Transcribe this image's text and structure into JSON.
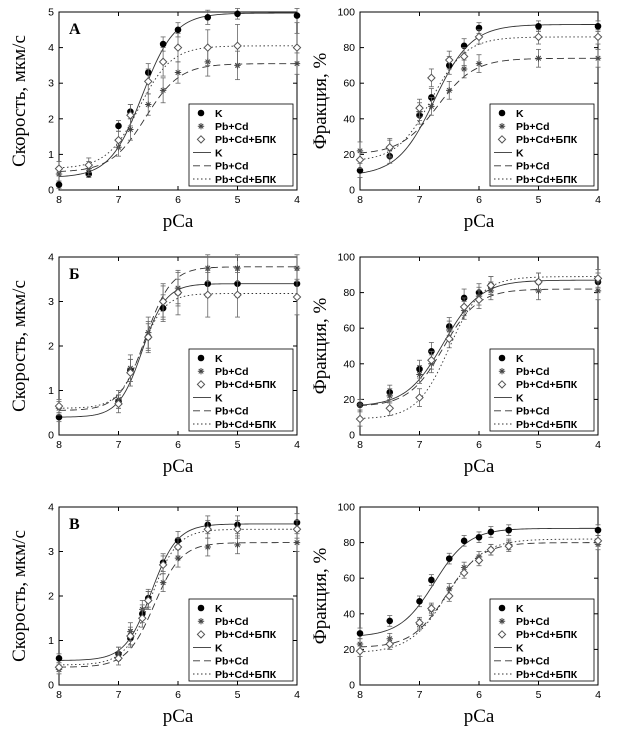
{
  "figure": {
    "row_labels": [
      "А",
      "Б",
      "В"
    ],
    "x_axis_title": "pCa",
    "left_y_title": "Скорость, мкм/с",
    "right_y_title": "Фракция, %"
  },
  "chart_data": [
    {
      "type": "scatter",
      "panel": "А-left",
      "panel_label": "А",
      "xlabel": "pCa",
      "ylabel": "Скорость, мкм/с",
      "xlim": [
        8,
        4
      ],
      "xticks": [
        8,
        7,
        6,
        5,
        4
      ],
      "ylim": [
        0,
        5
      ],
      "yticks": [
        0,
        1,
        2,
        3,
        4,
        5
      ],
      "legend_position": "bottom-right",
      "legend": [
        "K",
        "Pb+Cd",
        "Pb+Cd+БПК",
        "K",
        "Pb+Cd",
        "Pb+Cd+БПК"
      ],
      "x": [
        8,
        7.5,
        7,
        6.8,
        6.5,
        6.25,
        6,
        5.5,
        5,
        4
      ],
      "series": [
        {
          "name": "K",
          "marker": "filled-circle",
          "line": "solid",
          "values": [
            0.15,
            0.45,
            1.8,
            2.2,
            3.3,
            4.1,
            4.5,
            4.85,
            4.95,
            4.9
          ],
          "errors": [
            0.1,
            0.1,
            0.15,
            0.2,
            0.25,
            0.2,
            0.2,
            0.2,
            0.15,
            0.2
          ],
          "fit": {
            "top": 4.97,
            "bottom": 0.35,
            "pca50": 6.6,
            "n": 1.6
          }
        },
        {
          "name": "Pb+Cd",
          "marker": "asterisk",
          "line": "dashed",
          "values": [
            0.45,
            0.6,
            1.2,
            1.7,
            2.4,
            2.8,
            3.3,
            3.6,
            3.5,
            3.55
          ],
          "errors": [
            0.2,
            0.2,
            0.25,
            0.3,
            0.3,
            0.35,
            0.3,
            0.4,
            0.4,
            0.3
          ],
          "fit": {
            "top": 3.55,
            "bottom": 0.5,
            "pca50": 6.55,
            "n": 1.5
          }
        },
        {
          "name": "Pb+Cd+БПК",
          "marker": "open-diamond",
          "line": "dotted",
          "values": [
            0.6,
            0.7,
            1.4,
            2.1,
            3.05,
            3.6,
            4.0,
            4.0,
            4.05,
            4.0
          ],
          "errors": [
            0.2,
            0.2,
            0.25,
            0.3,
            0.35,
            0.4,
            0.4,
            0.5,
            0.6,
            0.4
          ],
          "fit": {
            "top": 4.05,
            "bottom": 0.6,
            "pca50": 6.65,
            "n": 1.6
          }
        }
      ]
    },
    {
      "type": "scatter",
      "panel": "А-right",
      "xlabel": "pCa",
      "ylabel": "Фракция, %",
      "xlim": [
        8,
        4
      ],
      "xticks": [
        8,
        7,
        6,
        5,
        4
      ],
      "ylim": [
        0,
        100
      ],
      "yticks": [
        0,
        20,
        40,
        60,
        80,
        100
      ],
      "legend_position": "bottom-right",
      "legend": [
        "K",
        "Pb+Cd",
        "Pb+Cd+БПК",
        "K",
        "Pb+Cd",
        "Pb+Cd+БПК"
      ],
      "x": [
        8,
        7.5,
        7,
        6.8,
        6.5,
        6.25,
        6,
        5,
        4
      ],
      "series": [
        {
          "name": "K",
          "marker": "filled-circle",
          "line": "solid",
          "values": [
            11,
            19,
            42,
            52,
            70,
            81,
            91,
            92,
            92
          ],
          "errors": [
            4,
            4,
            5,
            5,
            5,
            4,
            3,
            3,
            3
          ],
          "fit": {
            "top": 93,
            "bottom": 8,
            "pca50": 6.75,
            "n": 1.4
          }
        },
        {
          "name": "Pb+Cd",
          "marker": "asterisk",
          "line": "dashed",
          "values": [
            22,
            23,
            44,
            47,
            56,
            68,
            71,
            74,
            74
          ],
          "errors": [
            5,
            5,
            5,
            5,
            5,
            5,
            5,
            5,
            5
          ],
          "fit": {
            "top": 74,
            "bottom": 20,
            "pca50": 6.7,
            "n": 1.4
          }
        },
        {
          "name": "Pb+Cd+БПК",
          "marker": "open-diamond",
          "line": "dotted",
          "values": [
            17,
            24,
            46,
            63,
            73,
            75,
            86,
            86,
            86
          ],
          "errors": [
            5,
            5,
            5,
            5,
            5,
            5,
            4,
            4,
            4
          ],
          "fit": {
            "top": 86,
            "bottom": 16,
            "pca50": 6.8,
            "n": 1.5
          }
        }
      ]
    },
    {
      "type": "scatter",
      "panel": "Б-left",
      "panel_label": "Б",
      "xlabel": "pCa",
      "ylabel": "Скорость, мкм/с",
      "xlim": [
        8,
        4
      ],
      "xticks": [
        8,
        7,
        6,
        5,
        4
      ],
      "ylim": [
        0,
        4
      ],
      "yticks": [
        0,
        1,
        2,
        3,
        4
      ],
      "legend_position": "bottom-right",
      "legend": [
        "K",
        "Pb+Cd",
        "Pb+Cd+БПК",
        "K",
        "Pb+Cd",
        "Pb+Cd+БПК"
      ],
      "x": [
        8,
        7,
        6.8,
        6.5,
        6.25,
        6,
        5.5,
        5,
        4
      ],
      "series": [
        {
          "name": "K",
          "marker": "filled-circle",
          "line": "solid",
          "values": [
            0.4,
            0.75,
            1.45,
            2.2,
            2.85,
            3.2,
            3.4,
            3.4,
            3.4
          ],
          "errors": [
            0.1,
            0.15,
            0.25,
            0.3,
            0.3,
            0.3,
            0.3,
            0.3,
            0.3
          ],
          "fit": {
            "top": 3.4,
            "bottom": 0.4,
            "pca50": 6.6,
            "n": 2.2
          }
        },
        {
          "name": "Pb+Cd",
          "marker": "asterisk",
          "line": "dashed",
          "values": [
            0.6,
            0.8,
            1.5,
            2.3,
            3.0,
            3.3,
            3.75,
            3.75,
            3.75
          ],
          "errors": [
            0.15,
            0.2,
            0.3,
            0.35,
            0.35,
            0.35,
            0.3,
            0.3,
            0.3
          ],
          "fit": {
            "top": 3.78,
            "bottom": 0.55,
            "pca50": 6.55,
            "n": 2.0
          }
        },
        {
          "name": "Pb+Cd+БПК",
          "marker": "open-diamond",
          "line": "dotted",
          "values": [
            0.65,
            0.7,
            1.4,
            2.2,
            3.0,
            3.2,
            3.15,
            3.15,
            3.1
          ],
          "errors": [
            0.15,
            0.2,
            0.3,
            0.35,
            0.4,
            0.5,
            0.5,
            0.5,
            0.4
          ],
          "fit": {
            "top": 3.18,
            "bottom": 0.6,
            "pca50": 6.62,
            "n": 2.2
          }
        }
      ]
    },
    {
      "type": "scatter",
      "panel": "Б-right",
      "xlabel": "pCa",
      "ylabel": "Фракция, %",
      "xlim": [
        8,
        4
      ],
      "xticks": [
        8,
        7,
        6,
        5,
        4
      ],
      "ylim": [
        0,
        100
      ],
      "yticks": [
        0,
        20,
        40,
        60,
        80,
        100
      ],
      "legend_position": "bottom-right",
      "legend": [
        "K",
        "Pb+Cd",
        "Pb+Cd+БПК",
        "K",
        "Pb+Cd",
        "Pb+Cd+БПК"
      ],
      "x": [
        8,
        7.5,
        7,
        6.8,
        6.5,
        6.25,
        6,
        5.8,
        5,
        4
      ],
      "series": [
        {
          "name": "K",
          "marker": "filled-circle",
          "line": "solid",
          "values": [
            17,
            24,
            37,
            47,
            61,
            77,
            80,
            84,
            86,
            86
          ],
          "errors": [
            3,
            4,
            5,
            5,
            5,
            5,
            5,
            5,
            5,
            5
          ],
          "fit": {
            "top": 87,
            "bottom": 16,
            "pca50": 6.6,
            "n": 1.4
          }
        },
        {
          "name": "Pb+Cd",
          "marker": "asterisk",
          "line": "dashed",
          "values": [
            17,
            22,
            34,
            40,
            59,
            70,
            78,
            81,
            81,
            81
          ],
          "errors": [
            3,
            4,
            5,
            5,
            5,
            5,
            5,
            5,
            5,
            5
          ],
          "fit": {
            "top": 82,
            "bottom": 16,
            "pca50": 6.6,
            "n": 1.5
          }
        },
        {
          "name": "Pb+Cd+БПК",
          "marker": "open-diamond",
          "line": "dotted",
          "values": [
            9,
            15,
            21,
            42,
            54,
            72,
            76,
            84,
            86,
            88
          ],
          "errors": [
            4,
            4,
            5,
            5,
            5,
            5,
            5,
            5,
            5,
            5
          ],
          "fit": {
            "top": 89,
            "bottom": 9,
            "pca50": 6.5,
            "n": 1.6
          }
        }
      ]
    },
    {
      "type": "scatter",
      "panel": "В-left",
      "panel_label": "В",
      "xlabel": "pCa",
      "ylabel": "Скорость, мкм/с",
      "xlim": [
        8,
        4
      ],
      "xticks": [
        8,
        7,
        6,
        5,
        4
      ],
      "ylim": [
        0,
        4
      ],
      "yticks": [
        0,
        1,
        2,
        3,
        4
      ],
      "legend_position": "bottom-right",
      "legend": [
        "K",
        "Pb+Cd",
        "Pb+Cd+БПК",
        "K",
        "Pb+Cd",
        "Pb+Cd+БПК"
      ],
      "x": [
        8,
        7,
        6.8,
        6.6,
        6.5,
        6.25,
        6,
        5.5,
        5,
        4
      ],
      "series": [
        {
          "name": "K",
          "marker": "filled-circle",
          "line": "solid",
          "values": [
            0.6,
            0.7,
            1.05,
            1.6,
            1.95,
            2.75,
            3.25,
            3.6,
            3.6,
            3.65
          ],
          "errors": [
            0.1,
            0.15,
            0.2,
            0.2,
            0.2,
            0.2,
            0.2,
            0.2,
            0.2,
            0.2
          ],
          "fit": {
            "top": 3.62,
            "bottom": 0.55,
            "pca50": 6.45,
            "n": 2.0
          }
        },
        {
          "name": "Pb+Cd",
          "marker": "asterisk",
          "line": "dashed",
          "values": [
            0.35,
            0.7,
            1.2,
            1.7,
            1.9,
            2.3,
            2.85,
            3.1,
            3.15,
            3.2
          ],
          "errors": [
            0.1,
            0.15,
            0.2,
            0.2,
            0.2,
            0.2,
            0.2,
            0.2,
            0.2,
            0.2
          ],
          "fit": {
            "top": 3.2,
            "bottom": 0.4,
            "pca50": 6.4,
            "n": 1.9
          }
        },
        {
          "name": "Pb+Cd+БПК",
          "marker": "open-diamond",
          "line": "dotted",
          "values": [
            0.4,
            0.6,
            1.1,
            1.5,
            1.9,
            2.7,
            3.1,
            3.5,
            3.5,
            3.5
          ],
          "errors": [
            0.1,
            0.15,
            0.2,
            0.2,
            0.2,
            0.2,
            0.2,
            0.2,
            0.2,
            0.2
          ],
          "fit": {
            "top": 3.5,
            "bottom": 0.45,
            "pca50": 6.45,
            "n": 2.0
          }
        }
      ]
    },
    {
      "type": "scatter",
      "panel": "В-right",
      "xlabel": "pCa",
      "ylabel": "Фракция, %",
      "xlim": [
        8,
        4
      ],
      "xticks": [
        8,
        7,
        6,
        5,
        4
      ],
      "ylim": [
        0,
        100
      ],
      "yticks": [
        0,
        20,
        40,
        60,
        80,
        100
      ],
      "legend_position": "bottom-right",
      "legend": [
        "K",
        "Pb+Cd",
        "Pb+Cd+БПК",
        "K",
        "Pb+Cd",
        "Pb+Cd+БПК"
      ],
      "x": [
        8,
        7.5,
        7,
        6.8,
        6.5,
        6.25,
        6,
        5.8,
        5.5,
        4
      ],
      "series": [
        {
          "name": "K",
          "marker": "filled-circle",
          "line": "solid",
          "values": [
            29,
            36,
            47,
            59,
            71,
            81,
            83,
            86,
            87,
            87
          ],
          "errors": [
            3,
            3,
            3,
            3,
            3,
            3,
            3,
            3,
            3,
            3
          ],
          "fit": {
            "top": 88,
            "bottom": 27,
            "pca50": 6.75,
            "n": 1.5
          }
        },
        {
          "name": "Pb+Cd",
          "marker": "asterisk",
          "line": "dashed",
          "values": [
            23,
            26,
            34,
            42,
            54,
            66,
            72,
            76,
            79,
            79
          ],
          "errors": [
            3,
            3,
            3,
            3,
            3,
            3,
            3,
            3,
            3,
            3
          ],
          "fit": {
            "top": 80,
            "bottom": 21,
            "pca50": 6.55,
            "n": 1.5
          }
        },
        {
          "name": "Pb+Cd+БПК",
          "marker": "open-diamond",
          "line": "dotted",
          "values": [
            19,
            23,
            35,
            43,
            50,
            63,
            70,
            76,
            78,
            81
          ],
          "errors": [
            3,
            3,
            3,
            3,
            3,
            3,
            3,
            3,
            3,
            3
          ],
          "fit": {
            "top": 82,
            "bottom": 18,
            "pca50": 6.55,
            "n": 1.4
          }
        }
      ]
    }
  ]
}
